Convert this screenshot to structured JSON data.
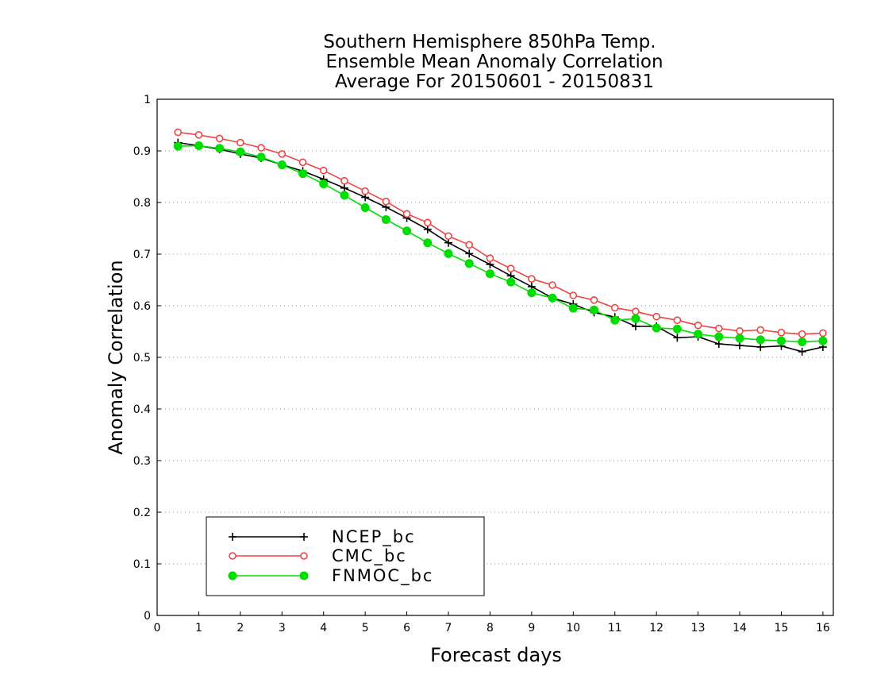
{
  "chart_data": {
    "type": "line",
    "title": [
      "Southern Hemisphere 850hPa Temp.",
      "Ensemble Mean Anomaly Correlation",
      "Average For 20150601 - 20150831"
    ],
    "xlabel": "Forecast days",
    "ylabel": "Anomaly Correlation",
    "xlim": [
      0,
      16.25
    ],
    "ylim": [
      0,
      1
    ],
    "xticks": [
      0,
      1,
      2,
      3,
      4,
      5,
      6,
      7,
      8,
      9,
      10,
      11,
      12,
      13,
      14,
      15,
      16
    ],
    "yticks": [
      0,
      0.1,
      0.2,
      0.3,
      0.4,
      0.5,
      0.6,
      0.7,
      0.8,
      0.9,
      1
    ],
    "ytick_labels": [
      "0",
      "0.1",
      "0.2",
      "0.3",
      "0.4",
      "0.5",
      "0.6",
      "0.7",
      "0.8",
      "0.9",
      "1"
    ],
    "grid": "horizontal dotted",
    "legend_position": "bottom-left",
    "x": [
      0.5,
      1,
      1.5,
      2,
      2.5,
      3,
      3.5,
      4,
      4.5,
      5,
      5.5,
      6,
      6.5,
      7,
      7.5,
      8,
      8.5,
      9,
      9.5,
      10,
      10.5,
      11,
      11.5,
      12,
      12.5,
      13,
      13.5,
      14,
      14.5,
      15,
      15.5,
      16
    ],
    "series": [
      {
        "name": "NCEP_bc",
        "color": "#000000",
        "marker": "plus",
        "values": [
          0.916,
          0.91,
          0.903,
          0.894,
          0.886,
          0.873,
          0.861,
          0.845,
          0.828,
          0.81,
          0.791,
          0.77,
          0.748,
          0.722,
          0.701,
          0.68,
          0.658,
          0.637,
          0.615,
          0.603,
          0.587,
          0.578,
          0.56,
          0.56,
          0.538,
          0.54,
          0.526,
          0.523,
          0.52,
          0.522,
          0.511,
          0.52
        ]
      },
      {
        "name": "CMC_bc",
        "color": "#ee4444",
        "marker": "open-circle",
        "values": [
          0.936,
          0.931,
          0.924,
          0.916,
          0.906,
          0.894,
          0.878,
          0.862,
          0.842,
          0.822,
          0.802,
          0.778,
          0.761,
          0.735,
          0.718,
          0.692,
          0.672,
          0.652,
          0.64,
          0.62,
          0.611,
          0.596,
          0.589,
          0.579,
          0.572,
          0.562,
          0.556,
          0.551,
          0.553,
          0.548,
          0.545,
          0.547
        ]
      },
      {
        "name": "FNMOC_bc",
        "color": "#00dd00",
        "marker": "filled-circle",
        "values": [
          0.909,
          0.91,
          0.905,
          0.898,
          0.888,
          0.873,
          0.856,
          0.836,
          0.814,
          0.79,
          0.767,
          0.745,
          0.722,
          0.701,
          0.682,
          0.662,
          0.646,
          0.625,
          0.615,
          0.595,
          0.592,
          0.572,
          0.575,
          0.557,
          0.555,
          0.545,
          0.54,
          0.537,
          0.534,
          0.532,
          0.53,
          0.532
        ]
      }
    ]
  }
}
